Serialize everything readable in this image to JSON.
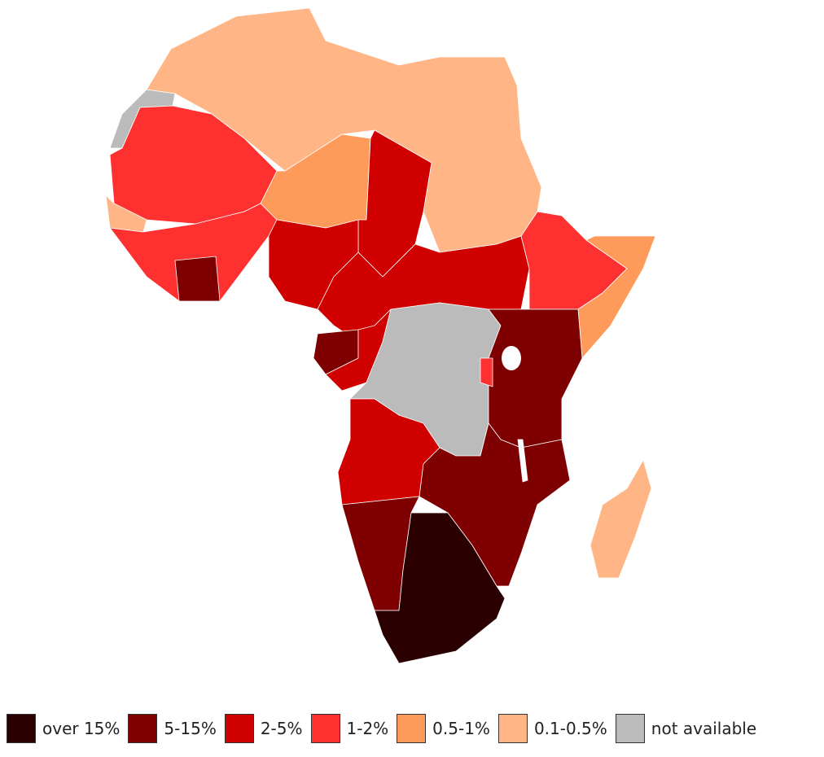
{
  "legend": {
    "items": [
      {
        "label": "over 15%",
        "color": "#2b0000"
      },
      {
        "label": "5-15%",
        "color": "#7f0000"
      },
      {
        "label": "2-5%",
        "color": "#d00000"
      },
      {
        "label": "1-2%",
        "color": "#ff3030"
      },
      {
        "label": "0.5-1%",
        "color": "#ff9b5a"
      },
      {
        "label": "0.1-0.5%",
        "color": "#ffb585"
      },
      {
        "label": "not available",
        "color": "#bbbbbb"
      }
    ]
  }
}
